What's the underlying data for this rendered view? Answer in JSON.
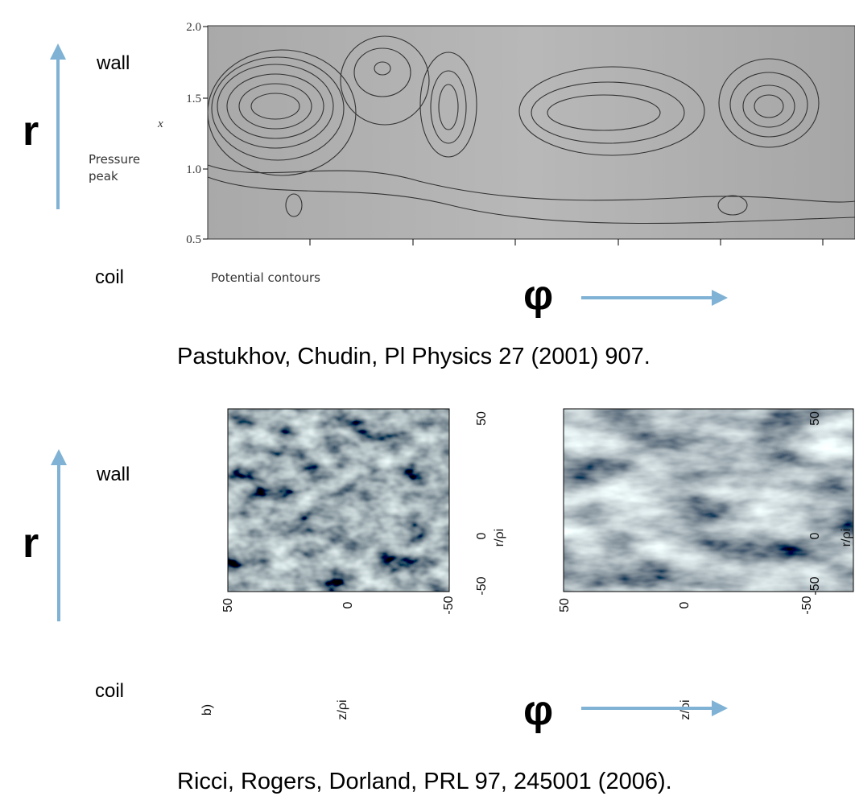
{
  "top": {
    "r_label": "r",
    "wall_label": "wall",
    "coil_label": "coil",
    "phi_label": "φ",
    "figure": {
      "yticks": [
        "2.0",
        "1.5",
        "1.0",
        "0.5"
      ],
      "axis_label": "x",
      "annotation": [
        "Pressure",
        "peak"
      ],
      "subtitle": "Potential contours"
    },
    "citation": "Pastukhov, Chudin, Pl Physics 27 (2001) 907."
  },
  "bottom": {
    "r_label": "r",
    "wall_label": "wall",
    "coil_label": "coil",
    "phi_label": "φ",
    "panels": [
      {
        "panel_label": "b)",
        "xticks": [
          "50",
          "0",
          "-50"
        ],
        "yticks": [
          "50",
          "0",
          "-50"
        ],
        "x_label": "z/ρi",
        "y_label": "r/ρi"
      },
      {
        "xticks": [
          "50",
          "0",
          "-50"
        ],
        "yticks": [
          "50",
          "0",
          "-50"
        ],
        "x_label": "z/ρi",
        "y_label": "r/ρi"
      }
    ],
    "citation": "Ricci, Rogers, Dorland, PRL 97, 245001 (2006)."
  }
}
